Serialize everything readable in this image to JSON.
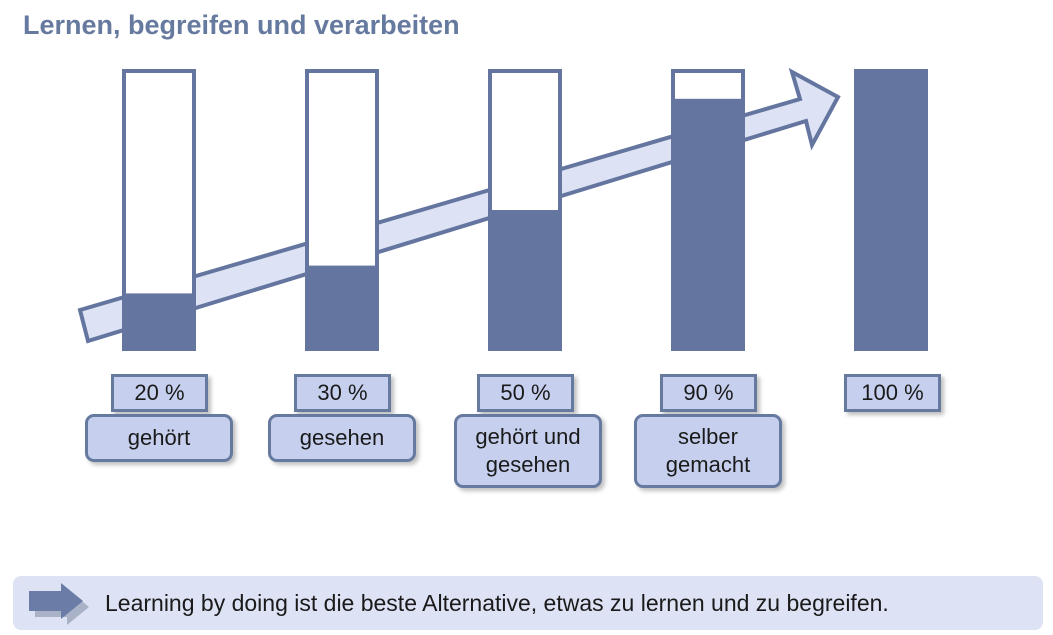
{
  "title": "Lernen, begreifen und verarbeiten",
  "colors": {
    "title": "#66799f",
    "bar_fill": "#64759f",
    "bar_border": "#64759f",
    "label_bg": "#c6d0ee",
    "arrow_fill": "#dde3f4",
    "footer_bg": "#dde3f4"
  },
  "steps": [
    {
      "value": "20 %",
      "label": "gehört",
      "fill_percent": 20
    },
    {
      "value": "30 %",
      "label": "gesehen",
      "fill_percent": 30
    },
    {
      "value": "50 %",
      "label": "gehört und\ngesehen",
      "fill_percent": 50
    },
    {
      "value": "90 %",
      "label": "selber\ngemacht",
      "fill_percent": 90
    },
    {
      "value": "100 %",
      "label": "",
      "fill_percent": 100
    }
  ],
  "footer": {
    "icon": "arrow-right-icon",
    "text": "Learning by doing ist die beste Alternative, etwas zu lernen und zu begreifen."
  }
}
